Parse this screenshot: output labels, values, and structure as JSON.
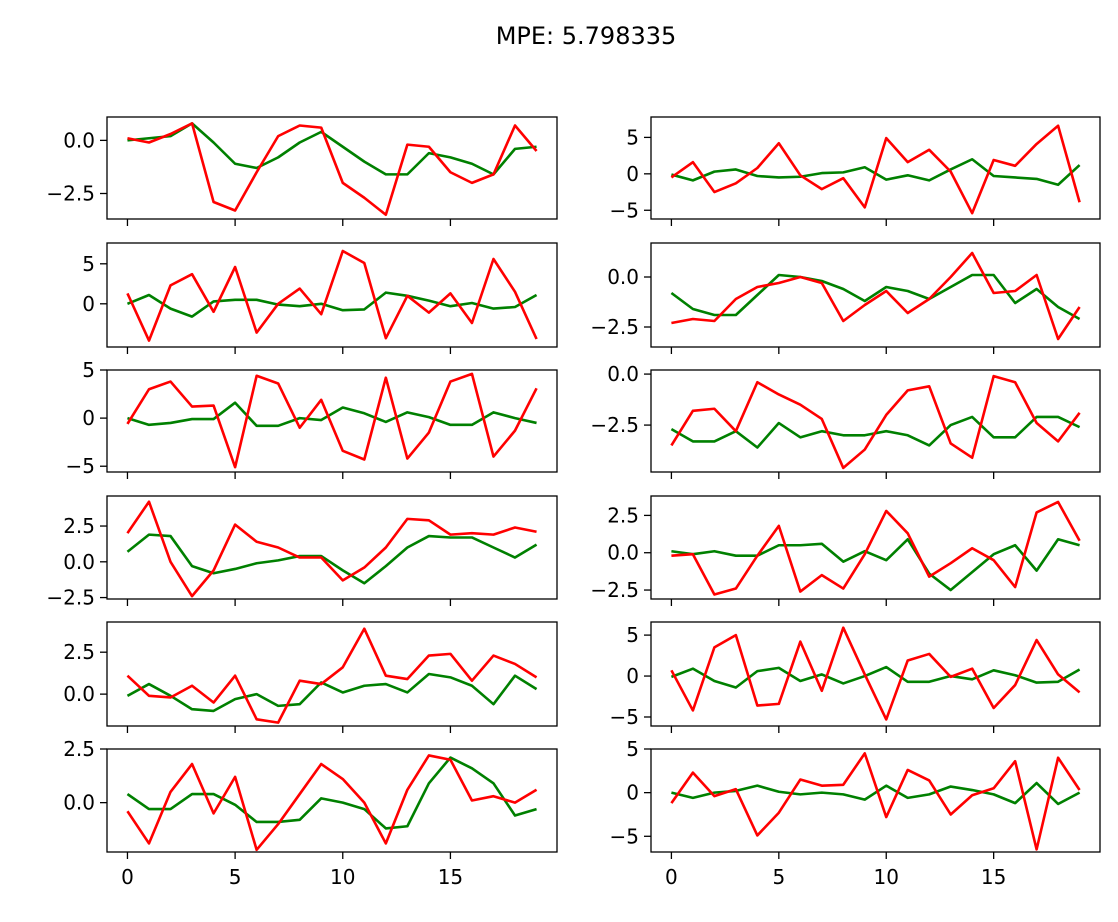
{
  "figure": {
    "title": "MPE: 5.798335"
  },
  "chart_data": {
    "type": "line",
    "title": "MPE: 5.798335",
    "x": [
      0,
      1,
      2,
      3,
      4,
      5,
      6,
      7,
      8,
      9,
      10,
      11,
      12,
      13,
      14,
      15,
      16,
      17,
      18,
      19
    ],
    "colors": {
      "green": "#008000",
      "red": "#ff0000"
    },
    "panels": [
      {
        "ylim": [
          -3.7,
          1.1
        ],
        "yticks": [
          0.0,
          -2.5
        ],
        "ytick_labels": [
          "0.0",
          "−2.5"
        ],
        "series": [
          {
            "color": "green",
            "values": [
              0.0,
              0.1,
              0.2,
              0.8,
              -0.1,
              -1.1,
              -1.3,
              -0.8,
              -0.1,
              0.4,
              -0.3,
              -1.0,
              -1.6,
              -1.6,
              -0.6,
              -0.8,
              -1.1,
              -1.6,
              -0.4,
              -0.3
            ]
          },
          {
            "color": "red",
            "values": [
              0.1,
              -0.1,
              0.3,
              0.8,
              -2.9,
              -3.3,
              -1.5,
              0.2,
              0.7,
              0.6,
              -2.0,
              -2.7,
              -3.5,
              -0.2,
              -0.3,
              -1.5,
              -2.0,
              -1.6,
              0.7,
              -0.5
            ]
          }
        ]
      },
      {
        "ylim": [
          -6.2,
          7.8
        ],
        "yticks": [
          5,
          0,
          -5
        ],
        "ytick_labels": [
          "5",
          "0",
          "−5"
        ],
        "series": [
          {
            "color": "green",
            "values": [
              -0.1,
              -0.9,
              0.3,
              0.6,
              -0.3,
              -0.5,
              -0.4,
              0.1,
              0.2,
              0.9,
              -0.8,
              -0.2,
              -0.9,
              0.6,
              2.0,
              -0.3,
              -0.5,
              -0.7,
              -1.5,
              1.2
            ]
          },
          {
            "color": "red",
            "values": [
              -0.5,
              1.6,
              -2.5,
              -1.3,
              0.8,
              4.2,
              -0.2,
              -2.1,
              -0.6,
              -4.6,
              4.9,
              1.6,
              3.3,
              0.3,
              -5.4,
              1.9,
              1.1,
              4.1,
              6.6,
              -3.9
            ]
          }
        ]
      },
      {
        "ylim": [
          -5.4,
          7.6
        ],
        "yticks": [
          5,
          0
        ],
        "ytick_labels": [
          "5",
          "0"
        ],
        "series": [
          {
            "color": "green",
            "values": [
              0.0,
              1.1,
              -0.6,
              -1.6,
              0.3,
              0.5,
              0.5,
              -0.1,
              -0.3,
              0.0,
              -0.8,
              -0.7,
              1.4,
              1.0,
              0.4,
              -0.3,
              0.1,
              -0.6,
              -0.4,
              1.1
            ]
          },
          {
            "color": "red",
            "values": [
              1.3,
              -4.6,
              2.3,
              3.7,
              -1.0,
              4.6,
              -3.6,
              0.0,
              1.9,
              -1.3,
              6.6,
              5.1,
              -4.3,
              1.0,
              -1.1,
              1.3,
              -2.4,
              5.6,
              1.5,
              -4.4
            ]
          }
        ]
      },
      {
        "ylim": [
          -3.5,
          1.7
        ],
        "yticks": [
          0.0,
          -2.5
        ],
        "ytick_labels": [
          "0.0",
          "−2.5"
        ],
        "series": [
          {
            "color": "green",
            "values": [
              -0.8,
              -1.6,
              -1.9,
              -1.9,
              -0.9,
              0.1,
              0.0,
              -0.2,
              -0.6,
              -1.2,
              -0.5,
              -0.7,
              -1.1,
              -0.5,
              0.1,
              0.1,
              -1.3,
              -0.6,
              -1.5,
              -2.1
            ]
          },
          {
            "color": "red",
            "values": [
              -2.3,
              -2.1,
              -2.2,
              -1.1,
              -0.5,
              -0.3,
              0.0,
              -0.3,
              -2.2,
              -1.4,
              -0.7,
              -1.8,
              -1.1,
              0.0,
              1.2,
              -0.8,
              -0.7,
              0.1,
              -3.1,
              -1.5
            ]
          }
        ]
      },
      {
        "ylim": [
          -5.6,
          5.0
        ],
        "yticks": [
          5,
          0,
          -5
        ],
        "ytick_labels": [
          "5",
          "0",
          "−5"
        ],
        "series": [
          {
            "color": "green",
            "values": [
              0.0,
              -0.7,
              -0.5,
              -0.1,
              -0.1,
              1.6,
              -0.8,
              -0.8,
              0.0,
              -0.2,
              1.1,
              0.5,
              -0.4,
              0.6,
              0.1,
              -0.7,
              -0.7,
              0.6,
              0.0,
              -0.5
            ]
          },
          {
            "color": "red",
            "values": [
              -0.6,
              3.0,
              3.8,
              1.2,
              1.3,
              -5.1,
              4.4,
              3.6,
              -1.0,
              1.9,
              -3.4,
              -4.3,
              4.2,
              -4.2,
              -1.5,
              3.8,
              4.6,
              -4.0,
              -1.3,
              3.1
            ]
          }
        ]
      },
      {
        "ylim": [
          -4.8,
          0.2
        ],
        "yticks": [
          0.0,
          -2.5
        ],
        "ytick_labels": [
          "0.0",
          "−2.5"
        ],
        "series": [
          {
            "color": "green",
            "values": [
              -2.7,
              -3.3,
              -3.3,
              -2.8,
              -3.6,
              -2.4,
              -3.1,
              -2.8,
              -3.0,
              -3.0,
              -2.8,
              -3.0,
              -3.5,
              -2.5,
              -2.1,
              -3.1,
              -3.1,
              -2.1,
              -2.1,
              -2.6
            ]
          },
          {
            "color": "red",
            "values": [
              -3.5,
              -1.8,
              -1.7,
              -2.8,
              -0.4,
              -1.0,
              -1.5,
              -2.2,
              -4.6,
              -3.7,
              -2.0,
              -0.8,
              -0.6,
              -3.4,
              -4.1,
              -0.1,
              -0.4,
              -2.4,
              -3.3,
              -1.9
            ]
          }
        ]
      },
      {
        "ylim": [
          -2.6,
          4.6
        ],
        "yticks": [
          2.5,
          0.0,
          -2.5
        ],
        "ytick_labels": [
          "2.5",
          "0.0",
          "−2.5"
        ],
        "series": [
          {
            "color": "green",
            "values": [
              0.7,
              1.9,
              1.8,
              -0.3,
              -0.8,
              -0.5,
              -0.1,
              0.1,
              0.4,
              0.4,
              -0.6,
              -1.5,
              -0.3,
              1.0,
              1.8,
              1.7,
              1.7,
              1.0,
              0.3,
              1.2
            ]
          },
          {
            "color": "red",
            "values": [
              2.0,
              4.2,
              0.0,
              -2.4,
              -0.6,
              2.6,
              1.4,
              1.0,
              0.3,
              0.3,
              -1.3,
              -0.4,
              1.0,
              3.0,
              2.9,
              1.9,
              2.0,
              1.9,
              2.4,
              2.1
            ]
          }
        ]
      },
      {
        "ylim": [
          -3.1,
          3.8
        ],
        "yticks": [
          2.5,
          0.0,
          -2.5
        ],
        "ytick_labels": [
          "2.5",
          "0.0",
          "−2.5"
        ],
        "series": [
          {
            "color": "green",
            "values": [
              0.1,
              -0.1,
              0.1,
              -0.2,
              -0.2,
              0.5,
              0.5,
              0.6,
              -0.6,
              0.1,
              -0.5,
              0.9,
              -1.4,
              -2.5,
              -1.3,
              -0.1,
              0.5,
              -1.2,
              0.9,
              0.5
            ]
          },
          {
            "color": "red",
            "values": [
              -0.2,
              -0.1,
              -2.8,
              -2.4,
              -0.2,
              1.8,
              -2.6,
              -1.5,
              -2.4,
              -0.1,
              2.8,
              1.3,
              -1.6,
              -0.7,
              0.3,
              -0.5,
              -2.3,
              2.7,
              3.4,
              0.8
            ]
          }
        ]
      },
      {
        "ylim": [
          -1.9,
          4.3
        ],
        "yticks": [
          2.5,
          0.0
        ],
        "ytick_labels": [
          "2.5",
          "0.0"
        ],
        "series": [
          {
            "color": "green",
            "values": [
              -0.1,
              0.6,
              -0.1,
              -0.9,
              -1.0,
              -0.3,
              0.0,
              -0.7,
              -0.6,
              0.7,
              0.1,
              0.5,
              0.6,
              0.1,
              1.2,
              1.0,
              0.5,
              -0.6,
              1.1,
              0.3
            ]
          },
          {
            "color": "red",
            "values": [
              1.1,
              -0.1,
              -0.2,
              0.5,
              -0.5,
              1.1,
              -1.5,
              -1.7,
              0.8,
              0.6,
              1.6,
              3.9,
              1.1,
              0.9,
              2.3,
              2.4,
              0.8,
              2.3,
              1.8,
              1.0
            ]
          }
        ]
      },
      {
        "ylim": [
          -6.1,
          6.6
        ],
        "yticks": [
          5,
          0,
          -5
        ],
        "ytick_labels": [
          "5",
          "0",
          "−5"
        ],
        "series": [
          {
            "color": "green",
            "values": [
              -0.1,
              0.9,
              -0.6,
              -1.4,
              0.6,
              1.0,
              -0.6,
              0.2,
              -0.9,
              0.0,
              1.1,
              -0.7,
              -0.7,
              0.0,
              -0.4,
              0.7,
              0.1,
              -0.8,
              -0.7,
              0.8
            ]
          },
          {
            "color": "red",
            "values": [
              0.7,
              -4.2,
              3.5,
              5.0,
              -3.6,
              -3.4,
              4.2,
              -1.8,
              5.9,
              0.2,
              -5.3,
              1.9,
              2.7,
              -0.1,
              0.9,
              -3.9,
              -1.1,
              4.4,
              0.2,
              -2.0
            ]
          }
        ]
      },
      {
        "ylim": [
          -2.3,
          2.5
        ],
        "yticks": [
          2.5,
          0.0
        ],
        "ytick_labels": [
          "2.5",
          "0.0"
        ],
        "series": [
          {
            "color": "green",
            "values": [
              0.4,
              -0.3,
              -0.3,
              0.4,
              0.4,
              -0.1,
              -0.9,
              -0.9,
              -0.8,
              0.2,
              0.0,
              -0.3,
              -1.2,
              -1.1,
              0.9,
              2.1,
              1.6,
              0.9,
              -0.6,
              -0.3
            ]
          },
          {
            "color": "red",
            "values": [
              -0.4,
              -1.9,
              0.5,
              1.8,
              -0.5,
              1.2,
              -2.2,
              -1.0,
              0.4,
              1.8,
              1.1,
              0.0,
              -1.9,
              0.6,
              2.2,
              2.0,
              0.1,
              0.3,
              0.0,
              0.6
            ]
          }
        ]
      },
      {
        "ylim": [
          -6.8,
          5.0
        ],
        "yticks": [
          5,
          0,
          -5
        ],
        "ytick_labels": [
          "5",
          "0",
          "−5"
        ],
        "series": [
          {
            "color": "green",
            "values": [
              0.0,
              -0.6,
              0.0,
              0.2,
              0.8,
              0.1,
              -0.2,
              0.0,
              -0.2,
              -0.8,
              0.8,
              -0.6,
              -0.2,
              0.7,
              0.3,
              -0.2,
              -1.2,
              1.1,
              -1.3,
              0.0
            ]
          },
          {
            "color": "red",
            "values": [
              -1.2,
              2.3,
              -0.4,
              0.4,
              -4.9,
              -2.3,
              1.5,
              0.8,
              0.9,
              4.5,
              -2.8,
              2.6,
              1.4,
              -2.5,
              -0.3,
              0.5,
              3.6,
              -6.5,
              4.0,
              0.3
            ]
          }
        ]
      }
    ],
    "xticks": [
      0,
      5,
      10,
      15
    ],
    "xtick_labels": [
      "0",
      "5",
      "10",
      "15"
    ]
  }
}
